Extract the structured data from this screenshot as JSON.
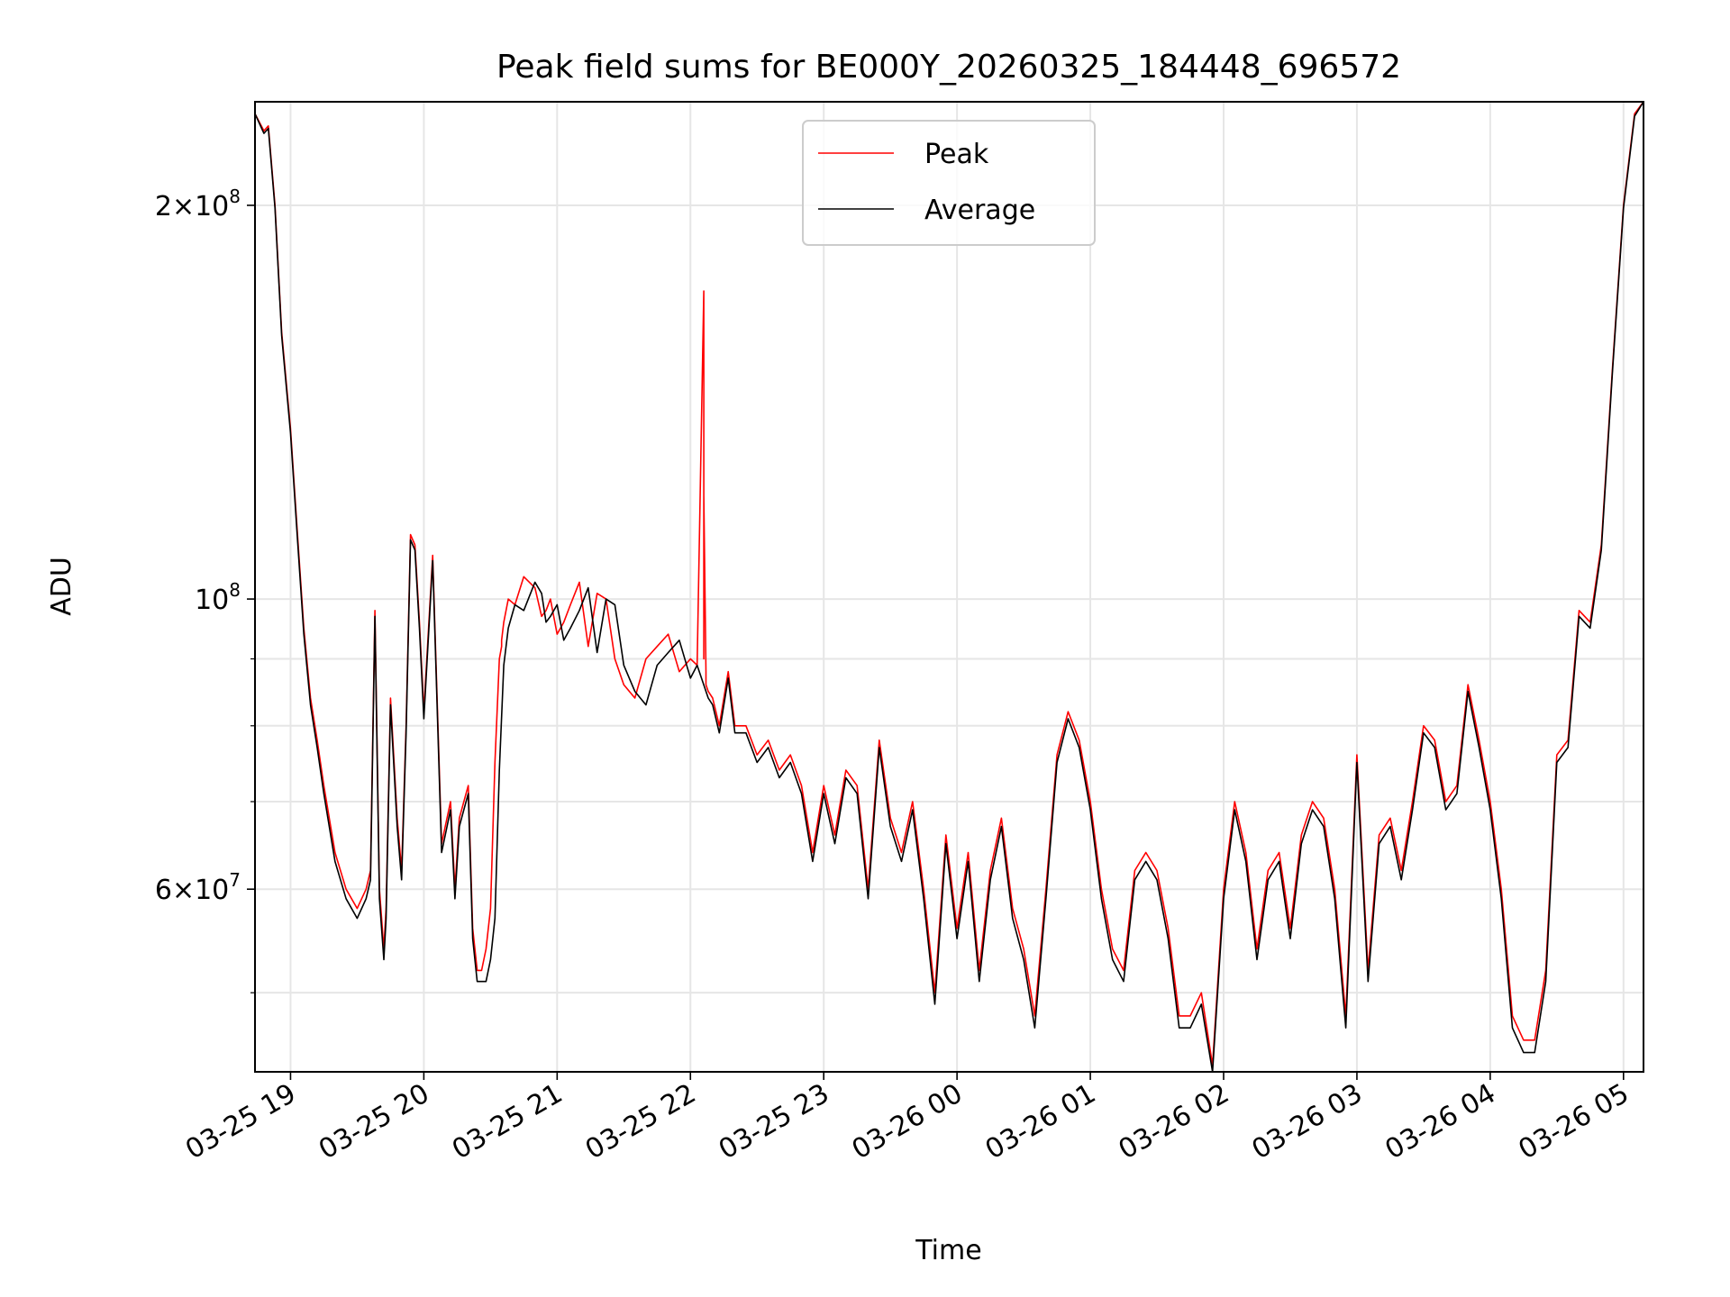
{
  "chart_data": {
    "type": "line",
    "title": "Peak field sums for BE000Y_20260325_184448_696572",
    "xlabel": "Time",
    "ylabel": "ADU",
    "y_scale": "log",
    "ylim": [
      43500000,
      240000000
    ],
    "xlim": [
      "2026-03-25 18:44",
      "2026-03-26 05:09"
    ],
    "grid": true,
    "legend_position": "top-center",
    "x_ticks": [
      {
        "value": "2026-03-25 19:00",
        "label": "03-25 19"
      },
      {
        "value": "2026-03-25 20:00",
        "label": "03-25 20"
      },
      {
        "value": "2026-03-25 21:00",
        "label": "03-25 21"
      },
      {
        "value": "2026-03-25 22:00",
        "label": "03-25 22"
      },
      {
        "value": "2026-03-25 23:00",
        "label": "03-25 23"
      },
      {
        "value": "2026-03-26 00:00",
        "label": "03-26 00"
      },
      {
        "value": "2026-03-26 01:00",
        "label": "03-26 01"
      },
      {
        "value": "2026-03-26 02:00",
        "label": "03-26 02"
      },
      {
        "value": "2026-03-26 03:00",
        "label": "03-26 03"
      },
      {
        "value": "2026-03-26 04:00",
        "label": "03-26 04"
      },
      {
        "value": "2026-03-26 05:00",
        "label": "03-26 05"
      }
    ],
    "y_major_ticks": [
      {
        "value": 60000000,
        "mant": "6",
        "exp": "7"
      },
      {
        "value": 100000000,
        "mant": "",
        "exp": "8"
      },
      {
        "value": 200000000,
        "mant": "2",
        "exp": "8"
      }
    ],
    "y_minor_ticks": [
      50000000,
      70000000,
      80000000,
      90000000
    ],
    "series": [
      {
        "name": "Peak",
        "color": "#ff0000",
        "x": [
          "2026-03-25 18:44",
          "2026-03-25 18:48",
          "2026-03-25 18:50",
          "2026-03-25 18:53",
          "2026-03-25 18:56",
          "2026-03-25 19:00",
          "2026-03-25 19:03",
          "2026-03-25 19:06",
          "2026-03-25 19:09",
          "2026-03-25 19:12",
          "2026-03-25 19:15",
          "2026-03-25 19:20",
          "2026-03-25 19:25",
          "2026-03-25 19:30",
          "2026-03-25 19:34",
          "2026-03-25 19:36",
          "2026-03-25 19:38",
          "2026-03-25 19:40",
          "2026-03-25 19:42",
          "2026-03-25 19:43",
          "2026-03-25 19:45",
          "2026-03-25 19:48",
          "2026-03-25 19:50",
          "2026-03-25 19:52",
          "2026-03-25 19:54",
          "2026-03-25 19:56",
          "2026-03-25 19:58",
          "2026-03-25 20:00",
          "2026-03-25 20:04",
          "2026-03-25 20:08",
          "2026-03-25 20:12",
          "2026-03-25 20:14",
          "2026-03-25 20:16",
          "2026-03-25 20:18",
          "2026-03-25 20:20",
          "2026-03-25 20:22",
          "2026-03-25 20:24",
          "2026-03-25 20:25",
          "2026-03-25 20:26",
          "2026-03-25 20:28",
          "2026-03-25 20:30",
          "2026-03-25 20:32",
          "2026-03-25 20:34",
          "2026-03-25 20:35",
          "2026-03-25 20:35",
          "2026-03-25 20:36",
          "2026-03-25 20:38",
          "2026-03-25 20:41",
          "2026-03-25 20:45",
          "2026-03-25 20:50",
          "2026-03-25 20:53",
          "2026-03-25 20:55",
          "2026-03-25 20:57",
          "2026-03-25 21:00",
          "2026-03-25 21:03",
          "2026-03-25 21:06",
          "2026-03-25 21:10",
          "2026-03-25 21:14",
          "2026-03-25 21:18",
          "2026-03-25 21:22",
          "2026-03-25 21:26",
          "2026-03-25 21:30",
          "2026-03-25 21:35",
          "2026-03-25 21:40",
          "2026-03-25 21:45",
          "2026-03-25 21:50",
          "2026-03-25 21:55",
          "2026-03-25 22:00",
          "2026-03-25 22:03",
          "2026-03-25 22:06",
          "2026-03-25 22:06",
          "2026-03-25 22:06",
          "2026-03-25 22:07",
          "2026-03-25 22:07",
          "2026-03-25 22:08",
          "2026-03-25 22:10",
          "2026-03-25 22:13",
          "2026-03-25 22:17",
          "2026-03-25 22:20",
          "2026-03-25 22:25",
          "2026-03-25 22:30",
          "2026-03-25 22:35",
          "2026-03-25 22:40",
          "2026-03-25 22:45",
          "2026-03-25 22:50",
          "2026-03-25 22:55",
          "2026-03-25 23:00",
          "2026-03-25 23:05",
          "2026-03-25 23:10",
          "2026-03-25 23:15",
          "2026-03-25 23:20",
          "2026-03-25 23:25",
          "2026-03-25 23:30",
          "2026-03-25 23:35",
          "2026-03-25 23:40",
          "2026-03-25 23:45",
          "2026-03-25 23:50",
          "2026-03-25 23:55",
          "2026-03-26 00:00",
          "2026-03-26 00:05",
          "2026-03-26 00:10",
          "2026-03-26 00:15",
          "2026-03-26 00:20",
          "2026-03-26 00:25",
          "2026-03-26 00:30",
          "2026-03-26 00:35",
          "2026-03-26 00:40",
          "2026-03-26 00:45",
          "2026-03-26 00:50",
          "2026-03-26 00:55",
          "2026-03-26 01:00",
          "2026-03-26 01:05",
          "2026-03-26 01:10",
          "2026-03-26 01:15",
          "2026-03-26 01:20",
          "2026-03-26 01:25",
          "2026-03-26 01:30",
          "2026-03-26 01:35",
          "2026-03-26 01:40",
          "2026-03-26 01:45",
          "2026-03-26 01:50",
          "2026-03-26 01:55",
          "2026-03-26 02:00",
          "2026-03-26 02:05",
          "2026-03-26 02:10",
          "2026-03-26 02:15",
          "2026-03-26 02:20",
          "2026-03-26 02:25",
          "2026-03-26 02:30",
          "2026-03-26 02:35",
          "2026-03-26 02:40",
          "2026-03-26 02:45",
          "2026-03-26 02:50",
          "2026-03-26 02:55",
          "2026-03-26 03:00",
          "2026-03-26 03:05",
          "2026-03-26 03:10",
          "2026-03-26 03:15",
          "2026-03-26 03:20",
          "2026-03-26 03:25",
          "2026-03-26 03:30",
          "2026-03-26 03:35",
          "2026-03-26 03:40",
          "2026-03-26 03:45",
          "2026-03-26 03:50",
          "2026-03-26 03:55",
          "2026-03-26 04:00",
          "2026-03-26 04:05",
          "2026-03-26 04:10",
          "2026-03-26 04:15",
          "2026-03-26 04:20",
          "2026-03-26 04:25",
          "2026-03-26 04:30",
          "2026-03-26 04:35",
          "2026-03-26 04:40",
          "2026-03-26 04:45",
          "2026-03-26 04:50",
          "2026-03-26 04:55",
          "2026-03-26 05:00",
          "2026-03-26 05:05",
          "2026-03-26 05:09"
        ],
        "values": [
          235000000,
          228000000,
          230000000,
          200000000,
          160000000,
          135000000,
          113000000,
          95000000,
          84000000,
          78000000,
          72000000,
          64000000,
          60000000,
          58000000,
          60000000,
          62000000,
          98000000,
          60000000,
          54000000,
          58000000,
          84000000,
          68000000,
          62000000,
          80000000,
          112000000,
          110000000,
          96000000,
          82000000,
          108000000,
          65000000,
          70000000,
          60000000,
          68000000,
          70000000,
          72000000,
          56000000,
          52000000,
          52000000,
          52000000,
          54000000,
          58000000,
          75000000,
          90000000,
          92000000,
          93000000,
          96000000,
          100000000,
          99000000,
          104000000,
          102000000,
          97000000,
          98000000,
          100000000,
          94000000,
          96000000,
          99000000,
          103000000,
          92000000,
          101000000,
          100000000,
          90000000,
          86000000,
          84000000,
          90000000,
          92000000,
          94000000,
          88000000,
          90000000,
          89000000,
          172000000,
          90000000,
          120000000,
          88000000,
          86000000,
          85000000,
          84000000,
          80000000,
          88000000,
          80000000,
          80000000,
          76000000,
          78000000,
          74000000,
          76000000,
          72000000,
          64000000,
          72000000,
          66000000,
          74000000,
          72000000,
          60000000,
          78000000,
          68000000,
          64000000,
          70000000,
          60000000,
          50000000,
          66000000,
          56000000,
          64000000,
          52000000,
          62000000,
          68000000,
          58000000,
          54000000,
          48000000,
          60000000,
          76000000,
          82000000,
          78000000,
          70000000,
          60000000,
          54000000,
          52000000,
          62000000,
          64000000,
          62000000,
          56000000,
          48000000,
          48000000,
          50000000,
          44000000,
          60000000,
          70000000,
          64000000,
          54000000,
          62000000,
          64000000,
          56000000,
          66000000,
          70000000,
          68000000,
          60000000,
          48000000,
          76000000,
          52000000,
          66000000,
          68000000,
          62000000,
          70000000,
          80000000,
          78000000,
          70000000,
          72000000,
          86000000,
          78000000,
          70000000,
          60000000,
          48000000,
          46000000,
          46000000,
          52000000,
          76000000,
          78000000,
          98000000,
          96000000,
          110000000,
          150000000,
          200000000,
          235000000,
          240000000
        ]
      },
      {
        "name": "Average",
        "color": "#000000",
        "x": [
          "2026-03-25 18:44",
          "2026-03-25 18:48",
          "2026-03-25 18:50",
          "2026-03-25 18:53",
          "2026-03-25 18:56",
          "2026-03-25 19:00",
          "2026-03-25 19:03",
          "2026-03-25 19:06",
          "2026-03-25 19:09",
          "2026-03-25 19:12",
          "2026-03-25 19:15",
          "2026-03-25 19:20",
          "2026-03-25 19:25",
          "2026-03-25 19:30",
          "2026-03-25 19:34",
          "2026-03-25 19:36",
          "2026-03-25 19:38",
          "2026-03-25 19:40",
          "2026-03-25 19:42",
          "2026-03-25 19:43",
          "2026-03-25 19:45",
          "2026-03-25 19:48",
          "2026-03-25 19:50",
          "2026-03-25 19:52",
          "2026-03-25 19:54",
          "2026-03-25 19:56",
          "2026-03-25 19:58",
          "2026-03-25 20:00",
          "2026-03-25 20:04",
          "2026-03-25 20:08",
          "2026-03-25 20:12",
          "2026-03-25 20:14",
          "2026-03-25 20:16",
          "2026-03-25 20:18",
          "2026-03-25 20:20",
          "2026-03-25 20:22",
          "2026-03-25 20:24",
          "2026-03-25 20:26",
          "2026-03-25 20:28",
          "2026-03-25 20:30",
          "2026-03-25 20:32",
          "2026-03-25 20:34",
          "2026-03-25 20:36",
          "2026-03-25 20:38",
          "2026-03-25 20:41",
          "2026-03-25 20:45",
          "2026-03-25 20:50",
          "2026-03-25 20:53",
          "2026-03-25 20:55",
          "2026-03-25 20:57",
          "2026-03-25 21:00",
          "2026-03-25 21:03",
          "2026-03-25 21:06",
          "2026-03-25 21:10",
          "2026-03-25 21:14",
          "2026-03-25 21:18",
          "2026-03-25 21:22",
          "2026-03-25 21:26",
          "2026-03-25 21:30",
          "2026-03-25 21:35",
          "2026-03-25 21:40",
          "2026-03-25 21:45",
          "2026-03-25 21:50",
          "2026-03-25 21:55",
          "2026-03-25 22:00",
          "2026-03-25 22:03",
          "2026-03-25 22:08",
          "2026-03-25 22:10",
          "2026-03-25 22:13",
          "2026-03-25 22:17",
          "2026-03-25 22:20",
          "2026-03-25 22:25",
          "2026-03-25 22:30",
          "2026-03-25 22:35",
          "2026-03-25 22:40",
          "2026-03-25 22:45",
          "2026-03-25 22:50",
          "2026-03-25 22:55",
          "2026-03-25 23:00",
          "2026-03-25 23:05",
          "2026-03-25 23:10",
          "2026-03-25 23:15",
          "2026-03-25 23:20",
          "2026-03-25 23:25",
          "2026-03-25 23:30",
          "2026-03-25 23:35",
          "2026-03-25 23:40",
          "2026-03-25 23:45",
          "2026-03-25 23:50",
          "2026-03-25 23:55",
          "2026-03-26 00:00",
          "2026-03-26 00:05",
          "2026-03-26 00:10",
          "2026-03-26 00:15",
          "2026-03-26 00:20",
          "2026-03-26 00:25",
          "2026-03-26 00:30",
          "2026-03-26 00:35",
          "2026-03-26 00:40",
          "2026-03-26 00:45",
          "2026-03-26 00:50",
          "2026-03-26 00:55",
          "2026-03-26 01:00",
          "2026-03-26 01:05",
          "2026-03-26 01:10",
          "2026-03-26 01:15",
          "2026-03-26 01:20",
          "2026-03-26 01:25",
          "2026-03-26 01:30",
          "2026-03-26 01:35",
          "2026-03-26 01:40",
          "2026-03-26 01:45",
          "2026-03-26 01:50",
          "2026-03-26 01:55",
          "2026-03-26 02:00",
          "2026-03-26 02:05",
          "2026-03-26 02:10",
          "2026-03-26 02:15",
          "2026-03-26 02:20",
          "2026-03-26 02:25",
          "2026-03-26 02:30",
          "2026-03-26 02:35",
          "2026-03-26 02:40",
          "2026-03-26 02:45",
          "2026-03-26 02:50",
          "2026-03-26 02:55",
          "2026-03-26 03:00",
          "2026-03-26 03:05",
          "2026-03-26 03:10",
          "2026-03-26 03:15",
          "2026-03-26 03:20",
          "2026-03-26 03:25",
          "2026-03-26 03:30",
          "2026-03-26 03:35",
          "2026-03-26 03:40",
          "2026-03-26 03:45",
          "2026-03-26 03:50",
          "2026-03-26 03:55",
          "2026-03-26 04:00",
          "2026-03-26 04:05",
          "2026-03-26 04:10",
          "2026-03-26 04:15",
          "2026-03-26 04:20",
          "2026-03-26 04:25",
          "2026-03-26 04:30",
          "2026-03-26 04:35",
          "2026-03-26 04:40",
          "2026-03-26 04:45",
          "2026-03-26 04:50",
          "2026-03-26 04:55",
          "2026-03-26 05:00",
          "2026-03-26 05:05",
          "2026-03-26 05:09"
        ],
        "values": [
          235000000,
          227000000,
          229000000,
          199000000,
          159000000,
          134000000,
          112000000,
          94000000,
          83000000,
          77000000,
          71000000,
          63000000,
          59000000,
          57000000,
          59000000,
          61000000,
          97000000,
          59000000,
          53000000,
          57000000,
          83000000,
          67000000,
          61000000,
          79000000,
          111000000,
          109000000,
          95000000,
          81000000,
          107000000,
          64000000,
          69000000,
          59000000,
          67000000,
          69000000,
          71000000,
          55000000,
          51000000,
          51000000,
          51000000,
          53000000,
          57000000,
          74000000,
          89000000,
          95000000,
          99000000,
          98000000,
          103000000,
          101000000,
          96000000,
          97000000,
          99000000,
          93000000,
          95000000,
          98000000,
          102000000,
          91000000,
          100000000,
          99000000,
          89000000,
          85000000,
          83000000,
          89000000,
          91000000,
          93000000,
          87000000,
          89000000,
          84000000,
          83000000,
          79000000,
          87000000,
          79000000,
          79000000,
          75000000,
          77000000,
          73000000,
          75000000,
          71000000,
          63000000,
          71000000,
          65000000,
          73000000,
          71000000,
          59000000,
          77000000,
          67000000,
          63000000,
          69000000,
          59000000,
          49000000,
          65000000,
          55000000,
          63000000,
          51000000,
          61000000,
          67000000,
          57000000,
          53000000,
          47000000,
          59000000,
          75000000,
          81000000,
          77000000,
          69000000,
          59000000,
          53000000,
          51000000,
          61000000,
          63000000,
          61000000,
          55000000,
          47000000,
          47000000,
          49000000,
          43500000,
          59000000,
          69000000,
          63000000,
          53000000,
          61000000,
          63000000,
          55000000,
          65000000,
          69000000,
          67000000,
          59000000,
          47000000,
          75000000,
          51000000,
          65000000,
          67000000,
          61000000,
          69000000,
          79000000,
          77000000,
          69000000,
          71000000,
          85000000,
          77000000,
          69000000,
          59000000,
          47000000,
          45000000,
          45000000,
          51000000,
          75000000,
          77000000,
          97000000,
          95000000,
          109000000,
          149000000,
          199000000,
          234000000,
          240000000
        ]
      }
    ]
  }
}
